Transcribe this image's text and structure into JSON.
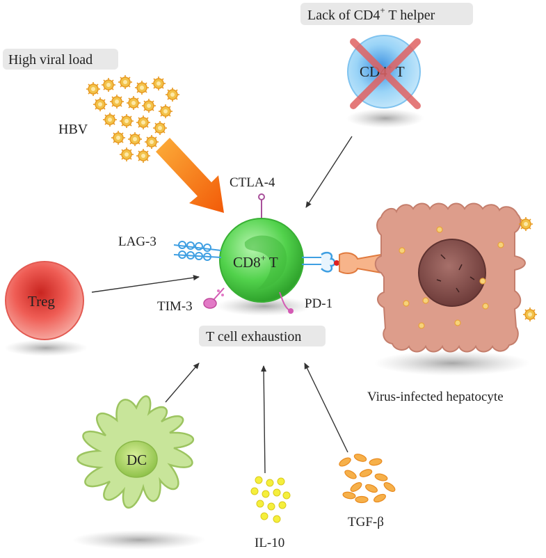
{
  "labels": {
    "lack_cd4": "Lack of CD4",
    "lack_cd4_sup": "+",
    "lack_cd4_suffix": " T helper",
    "high_viral_load": "High viral load",
    "hbv": "HBV",
    "cd4_cell": "CD4",
    "cd4_cell_sup": "+",
    "cd4_cell_suffix": " T",
    "ctla4": "CTLA-4",
    "lag3": "LAG-3",
    "cd8_cell": "CD8",
    "cd8_cell_sup": "+",
    "cd8_cell_suffix": "  T",
    "tim3": "TIM-3",
    "pd1": "PD-1",
    "treg": "Treg",
    "t_cell_exhaustion": "T cell exhaustion",
    "virus_infected_hepatocyte": "Virus-infected hepatocyte",
    "dc": "DC",
    "il10": "IL-10",
    "tgf_beta": "TGF-β"
  },
  "colors": {
    "virus": "#f0b43c",
    "cd8": "#4dd64d",
    "cd4": "#8fcff5",
    "cross": "#e06a6a",
    "treg": "#e8403a",
    "hepatocyte": "#dc9c8a",
    "dc": "#bfe08a",
    "il10": "#f4ee3c",
    "tgf": "#f39a2e",
    "arrow_big": "#f56a0a",
    "lag3": "#4aa6e6",
    "tim3": "#e070c0",
    "box": "#e6e6e6"
  }
}
